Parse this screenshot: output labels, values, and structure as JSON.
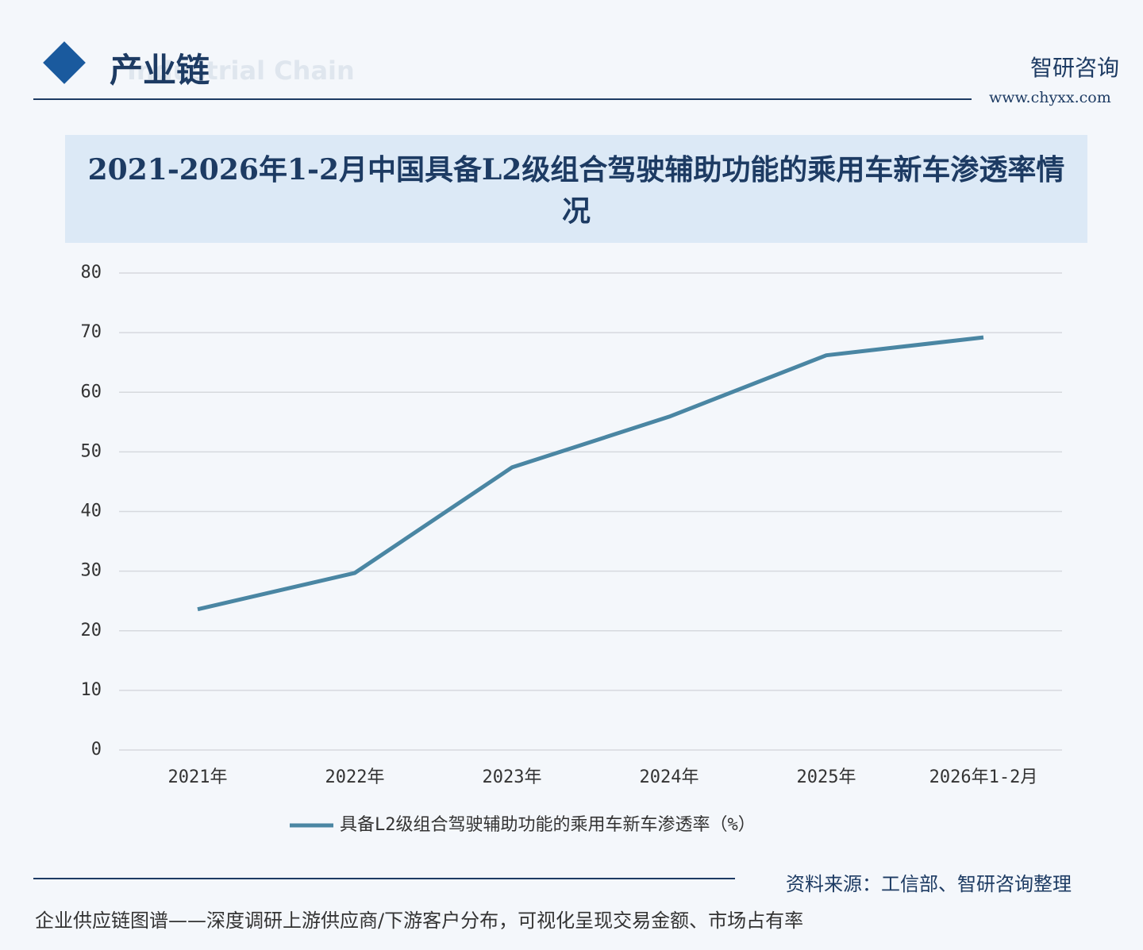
{
  "header": {
    "section": "产业链",
    "section_en": "Industrial Chain",
    "brand": "智研咨询",
    "site": "www.chyxx.com"
  },
  "chart_data": {
    "type": "line",
    "title": "2021-2026年1-2月中国具备L2级组合驾驶辅助功能的乘用车新车渗透率情况",
    "categories": [
      "2021年",
      "2022年",
      "2023年",
      "2024年",
      "2025年",
      "2026年1-2月"
    ],
    "series": [
      {
        "name": "具备L2级组合驾驶辅助功能的乘用车新车渗透率（%）",
        "color": "#4a86a3",
        "values": [
          23.6,
          29.7,
          47.4,
          55.9,
          66.2,
          69.2
        ]
      }
    ],
    "ylim": [
      0,
      80
    ],
    "yticks": [
      0,
      10,
      20,
      30,
      40,
      50,
      60,
      70,
      80
    ],
    "grid": true
  },
  "source": "资料来源：工信部、智研咨询整理",
  "footer": "企业供应链图谱——深度调研上游供应商/下游客户分布，可视化呈现交易金额、市场占有率"
}
